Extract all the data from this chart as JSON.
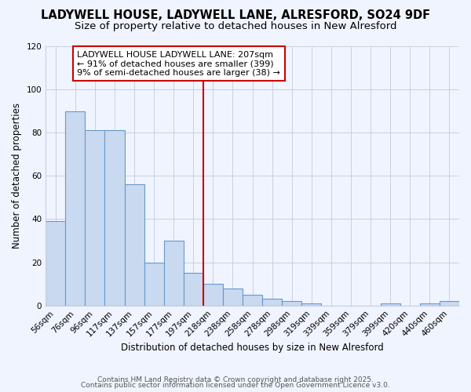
{
  "title": "LADYWELL HOUSE, LADYWELL LANE, ALRESFORD, SO24 9DF",
  "subtitle": "Size of property relative to detached houses in New Alresford",
  "xlabel": "Distribution of detached houses by size in New Alresford",
  "ylabel": "Number of detached properties",
  "bar_labels": [
    "56sqm",
    "76sqm",
    "96sqm",
    "117sqm",
    "137sqm",
    "157sqm",
    "177sqm",
    "197sqm",
    "218sqm",
    "238sqm",
    "258sqm",
    "278sqm",
    "298sqm",
    "319sqm",
    "339sqm",
    "359sqm",
    "379sqm",
    "399sqm",
    "420sqm",
    "440sqm",
    "460sqm"
  ],
  "bar_values": [
    39,
    90,
    81,
    81,
    56,
    20,
    30,
    15,
    10,
    8,
    5,
    3,
    2,
    1,
    0,
    0,
    0,
    1,
    0,
    1,
    2
  ],
  "bar_fill_color": "#c8d9f0",
  "bar_edge_color": "#6699cc",
  "vline_color": "#cc0000",
  "vline_position": 7.5,
  "annotation_text": "LADYWELL HOUSE LADYWELL LANE: 207sqm\n← 91% of detached houses are smaller (399)\n9% of semi-detached houses are larger (38) →",
  "annotation_box_color": "#cc0000",
  "ylim": [
    0,
    120
  ],
  "yticks": [
    0,
    20,
    40,
    60,
    80,
    100,
    120
  ],
  "footer1": "Contains HM Land Registry data © Crown copyright and database right 2025.",
  "footer2": "Contains public sector information licensed under the Open Government Licence v3.0.",
  "bg_color": "#f0f4ff",
  "grid_color": "#c8d0e0",
  "title_fontsize": 10.5,
  "subtitle_fontsize": 9.5,
  "annotation_fontsize": 8,
  "axis_label_fontsize": 8.5,
  "tick_fontsize": 7.5,
  "footer_fontsize": 6.5
}
